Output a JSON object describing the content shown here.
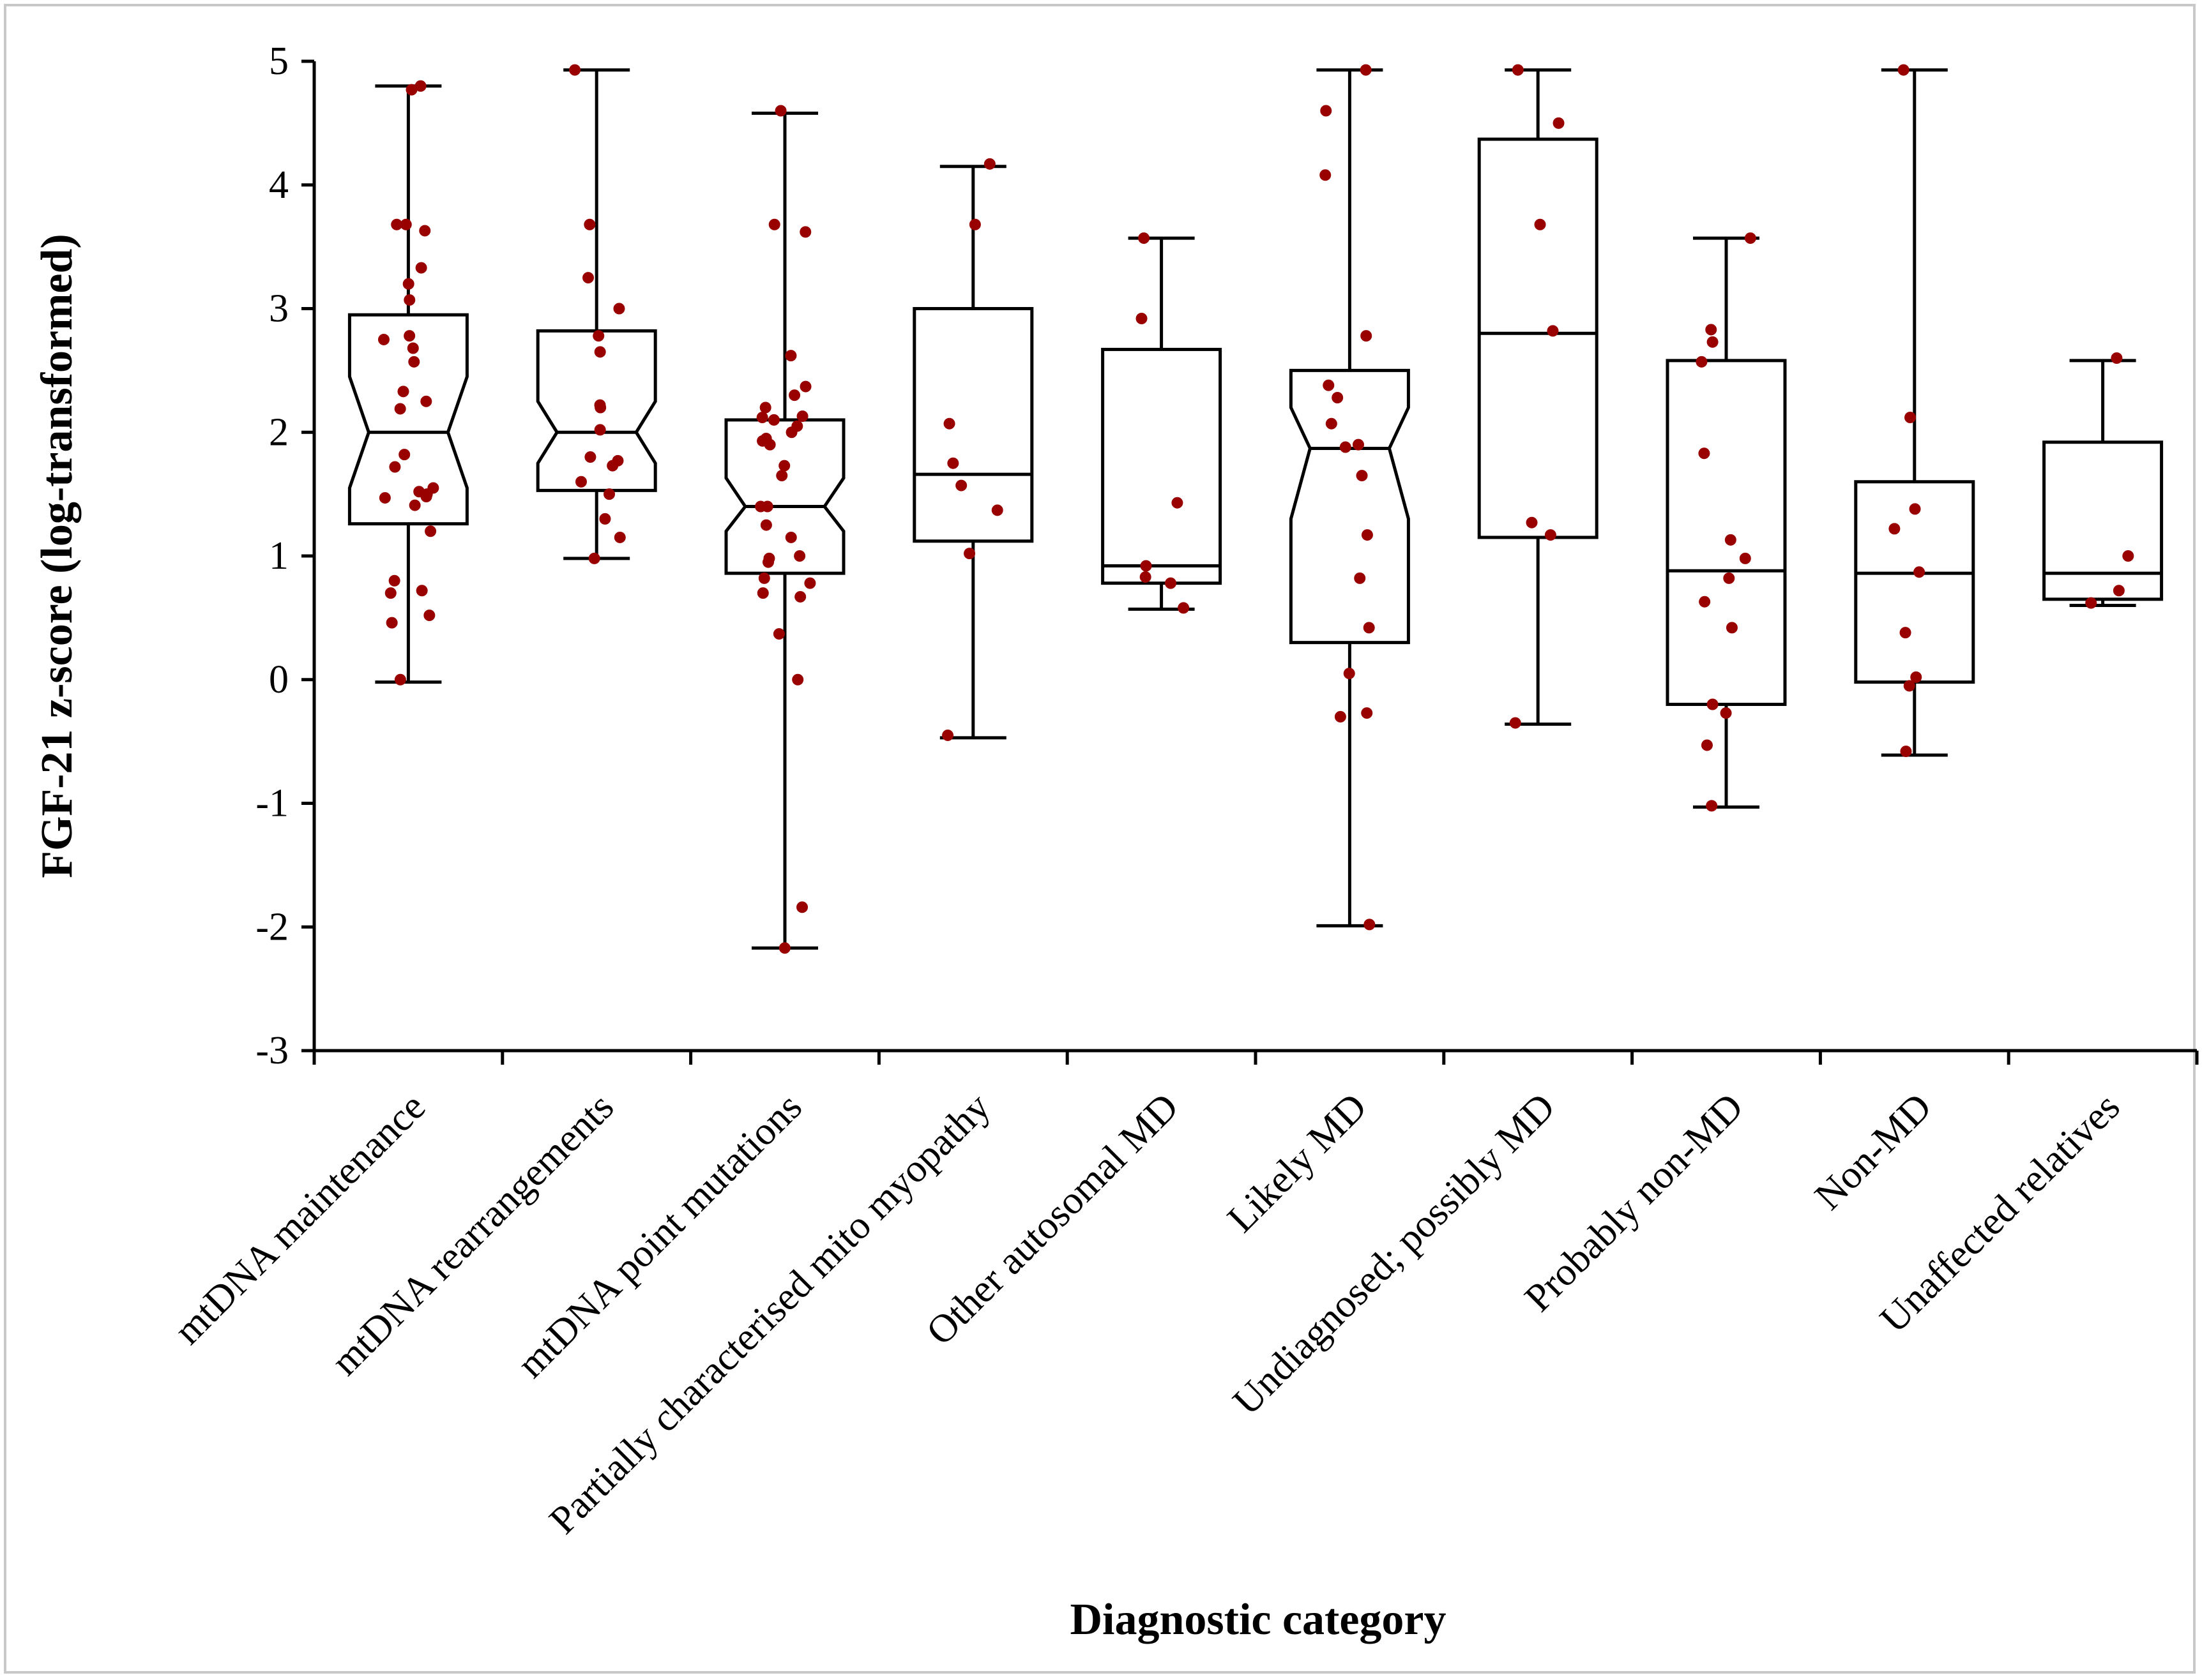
{
  "colors": {
    "point": "#990000",
    "axis": "#000000",
    "frame": "#c8c8c8"
  },
  "chart_data": {
    "type": "box",
    "title": "",
    "xlabel": "Diagnostic category",
    "ylabel": "FGF-21 z-score (log-transformed)",
    "ylim": [
      -3,
      5
    ],
    "yticks": [
      "5",
      "4",
      "3",
      "2",
      "1",
      "0",
      "-1",
      "-2",
      "-3"
    ],
    "grid": false,
    "categories": [
      "mtDNA maintenance",
      "mtDNA rearrangements",
      "mtDNA point mutations",
      "Partially characterised mito myopathy",
      "Other autosomal MD",
      "Likely MD",
      "Undiagnosed; possibly MD",
      "Probably non-MD",
      "Non-MD",
      "Unaffected relatives"
    ],
    "boxes": [
      {
        "category": "mtDNA maintenance",
        "notched": true,
        "whisker_low": -0.02,
        "q1": 1.26,
        "median": 2.0,
        "q3": 2.95,
        "whisker_high": 4.8,
        "notch_low": 1.55,
        "notch_high": 2.45,
        "points": [
          4.8,
          4.77,
          3.68,
          3.68,
          3.63,
          3.33,
          3.2,
          3.07,
          2.78,
          2.75,
          2.68,
          2.57,
          2.33,
          2.25,
          2.19,
          1.82,
          1.72,
          1.55,
          1.52,
          1.5,
          1.48,
          1.47,
          1.41,
          1.2,
          0.8,
          0.72,
          0.7,
          0.52,
          0.46,
          0.0
        ]
      },
      {
        "category": "mtDNA rearrangements",
        "notched": true,
        "whisker_low": 0.98,
        "q1": 1.53,
        "median": 2.0,
        "q3": 2.82,
        "whisker_high": 4.93,
        "notch_low": 1.75,
        "notch_high": 2.25,
        "points": [
          4.93,
          3.68,
          3.25,
          3.0,
          2.78,
          2.65,
          2.22,
          2.2,
          2.02,
          1.8,
          1.77,
          1.73,
          1.6,
          1.5,
          1.3,
          1.15,
          0.98
        ]
      },
      {
        "category": "mtDNA point mutations",
        "notched": true,
        "whisker_low": -2.17,
        "q1": 0.86,
        "median": 1.4,
        "q3": 2.1,
        "whisker_high": 4.58,
        "notch_low": 1.2,
        "notch_high": 1.63,
        "points": [
          4.6,
          3.68,
          3.62,
          2.62,
          2.37,
          2.3,
          2.2,
          2.13,
          2.12,
          2.1,
          2.05,
          2.0,
          1.95,
          1.93,
          1.9,
          1.73,
          1.65,
          1.4,
          1.4,
          1.25,
          1.15,
          1.0,
          0.98,
          0.95,
          0.82,
          0.78,
          0.7,
          0.67,
          0.37,
          0.0,
          -1.84,
          -2.17
        ]
      },
      {
        "category": "Partially characterised mito myopathy",
        "notched": false,
        "whisker_low": -0.47,
        "q1": 1.12,
        "median": 1.66,
        "q3": 3.0,
        "whisker_high": 4.15,
        "points": [
          4.17,
          3.68,
          2.07,
          1.75,
          1.57,
          1.37,
          1.02,
          -0.45
        ]
      },
      {
        "category": "Other autosomal MD",
        "notched": false,
        "whisker_low": 0.57,
        "q1": 0.78,
        "median": 0.92,
        "q3": 2.67,
        "whisker_high": 3.57,
        "points": [
          3.57,
          2.92,
          1.43,
          0.92,
          0.83,
          0.78,
          0.58
        ]
      },
      {
        "category": "Likely MD",
        "notched": true,
        "whisker_low": -1.99,
        "q1": 0.3,
        "median": 1.87,
        "q3": 2.5,
        "whisker_high": 4.93,
        "notch_low": 1.3,
        "notch_high": 2.2,
        "points": [
          4.93,
          4.6,
          4.08,
          2.78,
          2.38,
          2.28,
          2.07,
          1.9,
          1.88,
          1.65,
          1.17,
          0.82,
          0.42,
          0.05,
          -0.27,
          -0.3,
          -1.98
        ]
      },
      {
        "category": "Undiagnosed; possibly MD",
        "notched": false,
        "whisker_low": -0.36,
        "q1": 1.15,
        "median": 2.8,
        "q3": 4.37,
        "whisker_high": 4.93,
        "points": [
          4.93,
          4.5,
          3.68,
          2.82,
          1.27,
          1.17,
          -0.35
        ]
      },
      {
        "category": "Probably non-MD",
        "notched": false,
        "whisker_low": -1.03,
        "q1": -0.2,
        "median": 0.88,
        "q3": 2.58,
        "whisker_high": 3.57,
        "points": [
          3.57,
          2.83,
          2.73,
          2.57,
          1.83,
          1.13,
          0.98,
          0.82,
          0.63,
          0.42,
          -0.2,
          -0.27,
          -0.53,
          -1.02
        ]
      },
      {
        "category": "Non-MD",
        "notched": false,
        "whisker_low": -0.61,
        "q1": -0.02,
        "median": 0.86,
        "q3": 1.6,
        "whisker_high": 4.93,
        "points": [
          4.93,
          2.12,
          1.38,
          1.22,
          0.87,
          0.38,
          0.02,
          -0.05,
          -0.58
        ]
      },
      {
        "category": "Unaffected relatives",
        "notched": false,
        "whisker_low": 0.6,
        "q1": 0.65,
        "median": 0.86,
        "q3": 1.92,
        "whisker_high": 2.58,
        "points": [
          2.6,
          1.0,
          0.72,
          0.62
        ]
      }
    ]
  }
}
